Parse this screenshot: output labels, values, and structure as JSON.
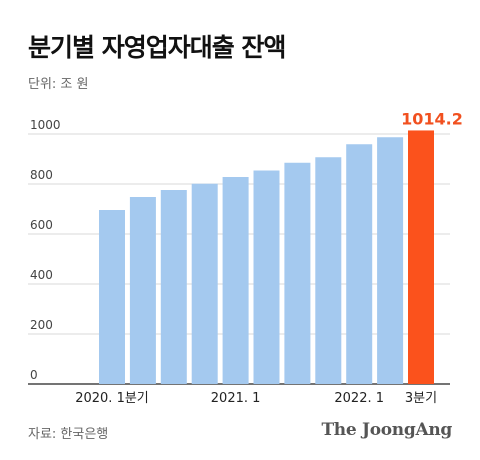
{
  "chart_data": {
    "type": "bar",
    "title": "분기별 자영업자대출 잔액",
    "unit_label": "단위: 조 원",
    "categories": [
      "2020. 1분기",
      "",
      "",
      "",
      "2021. 1",
      "",
      "",
      "",
      "2022. 1",
      "",
      "3분기"
    ],
    "values": [
      696,
      748,
      776,
      801,
      828,
      854,
      885,
      907,
      959,
      987,
      1014.2
    ],
    "yticks": [
      0,
      200,
      400,
      600,
      800,
      1000
    ],
    "ylim": [
      0,
      1000
    ],
    "highlight_index": 10,
    "highlight_label": "1014.2",
    "colors": {
      "bar": "#a4c9ef",
      "highlight": "#fb521c",
      "highlight_text": "#f1501f"
    }
  },
  "footer": {
    "source": "자료: 한국은행",
    "brand": "The JoongAng"
  }
}
